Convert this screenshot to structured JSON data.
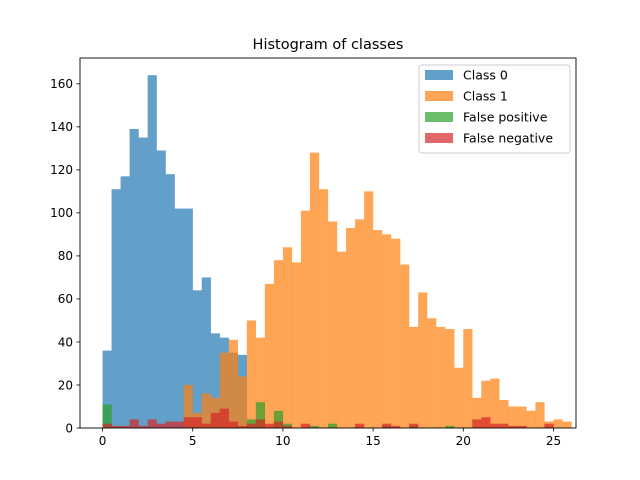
{
  "chart_data": {
    "type": "bar",
    "title": "Histogram of classes",
    "xlabel": "",
    "ylabel": "",
    "xlim": [
      -1.25,
      26.25
    ],
    "ylim": [
      0,
      172
    ],
    "xticks": [
      0,
      5,
      10,
      15,
      20,
      25
    ],
    "yticks": [
      0,
      20,
      40,
      60,
      80,
      100,
      120,
      140,
      160
    ],
    "bin_width": 0.5,
    "legend_position": "top-right",
    "series": [
      {
        "name": "Class 0",
        "color": "#1f77b4",
        "opacity": 0.7,
        "bin_start": 0,
        "values": [
          36,
          111,
          117,
          139,
          135,
          164,
          129,
          118,
          102,
          102,
          64,
          70,
          44,
          42,
          35,
          34
        ]
      },
      {
        "name": "Class 1",
        "color": "#ff7f0e",
        "opacity": 0.7,
        "bin_start": 4.5,
        "values": [
          20,
          7,
          16,
          14,
          35,
          41,
          24,
          50,
          42,
          67,
          78,
          84,
          77,
          101,
          128,
          111,
          96,
          82,
          93,
          97,
          110,
          92,
          90,
          88,
          76,
          47,
          63,
          51,
          47,
          46,
          28,
          46,
          14,
          22,
          23,
          13,
          10,
          10,
          8,
          12,
          3,
          4,
          3
        ]
      },
      {
        "name": "False positive",
        "color": "#2ca02c",
        "opacity": 0.7,
        "bin_start": 0,
        "values": [
          11,
          0,
          0,
          0,
          0,
          0,
          0,
          0,
          0,
          0,
          0,
          0,
          0,
          0,
          0,
          0,
          4,
          12,
          0,
          8,
          2,
          0,
          0,
          1,
          0,
          2,
          0,
          0,
          0,
          0,
          0,
          1,
          0,
          0,
          1,
          0,
          0,
          0,
          1,
          0,
          0,
          0,
          0,
          0,
          0,
          0,
          0,
          0,
          0,
          0
        ]
      },
      {
        "name": "False negative",
        "color": "#d62728",
        "opacity": 0.7,
        "bin_start": 0,
        "values": [
          2,
          1,
          1,
          4,
          1,
          4,
          2,
          3,
          3,
          5,
          5,
          2,
          7,
          9,
          3,
          1,
          2,
          4,
          2,
          3,
          1,
          0,
          2,
          0,
          0,
          0,
          0,
          0,
          2,
          0,
          0,
          2,
          1,
          0,
          2,
          0,
          0,
          0,
          0,
          0,
          0,
          4,
          5,
          2,
          2,
          1,
          1,
          0,
          0,
          2
        ]
      }
    ]
  }
}
